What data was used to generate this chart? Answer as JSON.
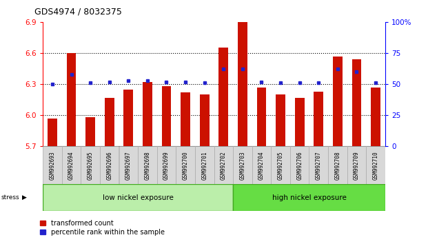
{
  "title": "GDS4974 / 8032375",
  "samples": [
    "GSM992693",
    "GSM992694",
    "GSM992695",
    "GSM992696",
    "GSM992697",
    "GSM992698",
    "GSM992699",
    "GSM992700",
    "GSM992701",
    "GSM992702",
    "GSM992703",
    "GSM992704",
    "GSM992705",
    "GSM992706",
    "GSM992707",
    "GSM992708",
    "GSM992709",
    "GSM992710"
  ],
  "red_values": [
    5.97,
    6.6,
    5.98,
    6.17,
    6.25,
    6.32,
    6.28,
    6.22,
    6.2,
    6.65,
    6.9,
    6.27,
    6.2,
    6.17,
    6.23,
    6.57,
    6.54,
    6.27
  ],
  "blue_values": [
    50,
    58,
    51,
    52,
    53,
    53,
    52,
    52,
    51,
    62,
    62,
    52,
    51,
    51,
    51,
    62,
    60,
    51
  ],
  "ylim_left": [
    5.7,
    6.9
  ],
  "ylim_right": [
    0,
    100
  ],
  "yticks_left": [
    5.7,
    6.0,
    6.3,
    6.6,
    6.9
  ],
  "yticks_right": [
    0,
    25,
    50,
    75,
    100
  ],
  "ytick_labels_right": [
    "0",
    "25",
    "50",
    "75",
    "100%"
  ],
  "bar_color_red": "#CC1100",
  "bar_color_blue": "#2222CC",
  "group1_label": "low nickel exposure",
  "group2_label": "high nickel exposure",
  "group1_count": 10,
  "stress_label": "stress",
  "legend_red": "transformed count",
  "legend_blue": "percentile rank within the sample",
  "bg_color": "#ffffff",
  "plot_bg": "#ffffff",
  "xtick_bg": "#d8d8d8",
  "xtick_edge": "#aaaaaa",
  "group1_color": "#bbeeaa",
  "group2_color": "#66dd44",
  "group_edge": "#44aa22"
}
